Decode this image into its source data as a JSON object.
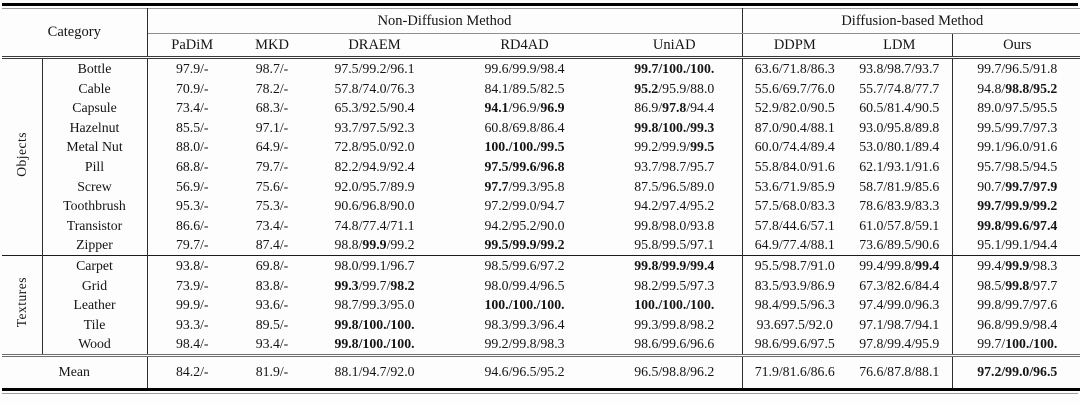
{
  "table": {
    "category_label": "Category",
    "groups": [
      {
        "label": "Non-Diffusion Method",
        "span": 5
      },
      {
        "label": "Diffusion-based Method",
        "span": 3
      }
    ],
    "methods": [
      "PaDiM",
      "MKD",
      "DRAEM",
      "RD4AD",
      "UniAD",
      "DDPM",
      "LDM",
      "Ours"
    ],
    "bold_marker": "**",
    "sections": [
      {
        "label": "Objects",
        "rows": [
          {
            "category": "Bottle",
            "values": [
              "97.9/-",
              "98.7/-",
              "97.5/99.2/96.1",
              "99.6/99.9/98.4",
              "**99.7/100./100.**",
              "63.6/71.8/86.3",
              "93.8/98.7/93.7",
              "99.7/96.5/91.8"
            ]
          },
          {
            "category": "Cable",
            "values": [
              "70.9/-",
              "78.2/-",
              "57.8/74.0/76.3",
              "84.1/89.5/82.5",
              "**95.2**/95.9/88.0",
              "55.6/69.7/76.0",
              "55.7/74.8/77.7",
              "94.8/**98.8/95.2**"
            ]
          },
          {
            "category": "Capsule",
            "values": [
              "73.4/-",
              "68.3/-",
              "65.3/92.5/90.4",
              "**94.1**/96.9/**96.9**",
              "86.9/**97.8**/94.4",
              "52.9/82.0/90.5",
              "60.5/81.4/90.5",
              "89.0/97.5/95.5"
            ]
          },
          {
            "category": "Hazelnut",
            "values": [
              "85.5/-",
              "97.1/-",
              "93.7/97.5/92.3",
              "60.8/69.8/86.4",
              "**99.8/100./99.3**",
              "87.0/90.4/88.1",
              "93.0/95.8/89.8",
              "99.5/99.7/97.3"
            ]
          },
          {
            "category": "Metal Nut",
            "values": [
              "88.0/-",
              "64.9/-",
              "72.8/95.0/92.0",
              "**100./100./99.5**",
              "99.2/99.9/**99.5**",
              "60.0/74.4/89.4",
              "53.0/80.1/89.4",
              "99.1/96.0/91.6"
            ]
          },
          {
            "category": "Pill",
            "values": [
              "68.8/-",
              "79.7/-",
              "82.2/94.9/92.4",
              "**97.5/99.6/96.8**",
              "93.7/98.7/95.7",
              "55.8/84.0/91.6",
              "62.1/93.1/91.6",
              "95.7/98.5/94.5"
            ]
          },
          {
            "category": "Screw",
            "values": [
              "56.9/-",
              "75.6/-",
              "92.0/95.7/89.9",
              "**97.7**/99.3/95.8",
              "87.5/96.5/89.0",
              "53.6/71.9/85.9",
              "58.7/81.9/85.6",
              "90.7/**99.7/97.9**"
            ]
          },
          {
            "category": "Toothbrush",
            "values": [
              "95.3/-",
              "75.3/-",
              "90.6/96.8/90.0",
              "97.2/99.0/94.7",
              "94.2/97.4/95.2",
              "57.5/68.0/83.3",
              "78.6/83.9/83.3",
              "**99.7/99.9/99.2**"
            ]
          },
          {
            "category": "Transistor",
            "values": [
              "86.6/-",
              "73.4/-",
              "74.8/77.4/71.1",
              "94.2/95.2/90.0",
              "99.8/98.0/93.8",
              "57.8/44.6/57.1",
              "61.0/57.8/59.1",
              "**99.8/99.6/97.4**"
            ]
          },
          {
            "category": "Zipper",
            "values": [
              "79.7/-",
              "87.4/-",
              "98.8/**99.9**/99.2",
              "**99.5/99.9/99.2**",
              "95.8/99.5/97.1",
              "64.9/77.4/88.1",
              "73.6/89.5/90.6",
              "95.1/99.1/94.4"
            ]
          }
        ]
      },
      {
        "label": "Textures",
        "rows": [
          {
            "category": "Carpet",
            "values": [
              "93.8/-",
              "69.8/-",
              "98.0/99.1/96.7",
              "98.5/99.6/97.2",
              "**99.8/99.9/99.4**",
              "95.5/98.7/91.0",
              "99.4/99.8/**99.4**",
              "99.4/**99.9**/98.3"
            ]
          },
          {
            "category": "Grid",
            "values": [
              "73.9/-",
              "83.8/-",
              "**99.3**/99.7/**98.2**",
              "98.0/99.4/96.5",
              "98.2/99.5/97.3",
              "83.5/93.9/86.9",
              "67.3/82.6/84.4",
              "98.5/**99.8**/97.7"
            ]
          },
          {
            "category": "Leather",
            "values": [
              "99.9/-",
              "93.6/-",
              "98.7/99.3/95.0",
              "**100./100./100.**",
              "**100./100./100.**",
              "98.4/99.5/96.3",
              "97.4/99.0/96.3",
              "99.8/99.7/97.6"
            ]
          },
          {
            "category": "Tile",
            "values": [
              "93.3/-",
              "89.5/-",
              "**99.8/100./100.**",
              "98.3/99.3/96.4",
              "99.3/99.8/98.2",
              "93.697.5/92.0",
              "97.1/98.7/94.1",
              "96.8/99.9/98.4"
            ]
          },
          {
            "category": "Wood",
            "values": [
              "98.4/-",
              "93.4/-",
              "**99.8/100./100.**",
              "99.2/99.8/98.3",
              "98.6/99.6/96.6",
              "98.6/99.6/97.5",
              "97.8/99.4/95.9",
              "99.7/**100./100.**"
            ]
          }
        ]
      }
    ],
    "mean": {
      "label": "Mean",
      "values": [
        "84.2/-",
        "81.9/-",
        "88.1/94.7/92.0",
        "94.6/96.5/95.2",
        "96.5/98.8/96.2",
        "71.9/81.6/86.6",
        "76.6/87.8/88.1",
        "**97.2/99.0/96.5**"
      ]
    }
  },
  "colors": {
    "text": "#141414",
    "rule_heavy": "#000000",
    "rule_light": "#8f8f8f",
    "background": "#fdfdfd"
  }
}
